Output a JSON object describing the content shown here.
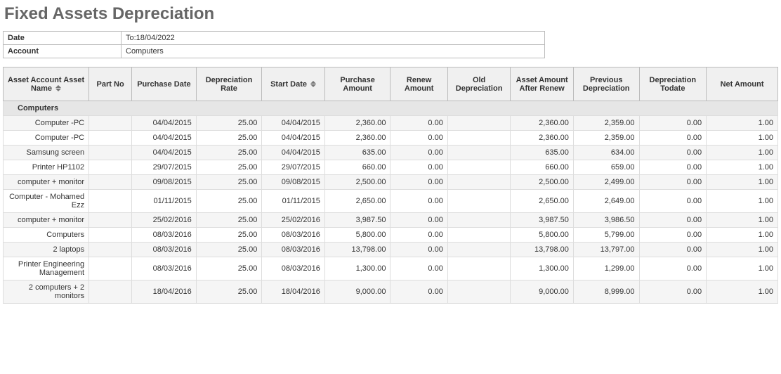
{
  "title": "Fixed Assets Depreciation",
  "meta": {
    "date_label": "Date",
    "date_value": "To:18/04/2022",
    "account_label": "Account",
    "account_value": "Computers"
  },
  "columns": [
    "Asset Account Asset Name",
    "Part No",
    "Purchase Date",
    "Depreciation Rate",
    "Start Date",
    "Purchase Amount",
    "Renew Amount",
    "Old Depreciation",
    "Asset Amount After Renew",
    "Previous Depreciation",
    "Depreciation Todate",
    "Net Amount"
  ],
  "group_label": "Computers",
  "rows": [
    {
      "name": "Computer -PC",
      "part": "",
      "pdate": "04/04/2015",
      "rate": "25.00",
      "sdate": "04/04/2015",
      "pamount": "2,360.00",
      "renew": "0.00",
      "olddep": "",
      "after": "2,360.00",
      "prev": "2,359.00",
      "todate": "0.00",
      "net": "1.00"
    },
    {
      "name": "Computer -PC",
      "part": "",
      "pdate": "04/04/2015",
      "rate": "25.00",
      "sdate": "04/04/2015",
      "pamount": "2,360.00",
      "renew": "0.00",
      "olddep": "",
      "after": "2,360.00",
      "prev": "2,359.00",
      "todate": "0.00",
      "net": "1.00"
    },
    {
      "name": "Samsung screen",
      "part": "",
      "pdate": "04/04/2015",
      "rate": "25.00",
      "sdate": "04/04/2015",
      "pamount": "635.00",
      "renew": "0.00",
      "olddep": "",
      "after": "635.00",
      "prev": "634.00",
      "todate": "0.00",
      "net": "1.00"
    },
    {
      "name": "Printer HP1102",
      "part": "",
      "pdate": "29/07/2015",
      "rate": "25.00",
      "sdate": "29/07/2015",
      "pamount": "660.00",
      "renew": "0.00",
      "olddep": "",
      "after": "660.00",
      "prev": "659.00",
      "todate": "0.00",
      "net": "1.00"
    },
    {
      "name": "computer + monitor",
      "part": "",
      "pdate": "09/08/2015",
      "rate": "25.00",
      "sdate": "09/08/2015",
      "pamount": "2,500.00",
      "renew": "0.00",
      "olddep": "",
      "after": "2,500.00",
      "prev": "2,499.00",
      "todate": "0.00",
      "net": "1.00"
    },
    {
      "name": "Computer - Mohamed Ezz",
      "part": "",
      "pdate": "01/11/2015",
      "rate": "25.00",
      "sdate": "01/11/2015",
      "pamount": "2,650.00",
      "renew": "0.00",
      "olddep": "",
      "after": "2,650.00",
      "prev": "2,649.00",
      "todate": "0.00",
      "net": "1.00"
    },
    {
      "name": "computer + monitor",
      "part": "",
      "pdate": "25/02/2016",
      "rate": "25.00",
      "sdate": "25/02/2016",
      "pamount": "3,987.50",
      "renew": "0.00",
      "olddep": "",
      "after": "3,987.50",
      "prev": "3,986.50",
      "todate": "0.00",
      "net": "1.00"
    },
    {
      "name": "Computers",
      "part": "",
      "pdate": "08/03/2016",
      "rate": "25.00",
      "sdate": "08/03/2016",
      "pamount": "5,800.00",
      "renew": "0.00",
      "olddep": "",
      "after": "5,800.00",
      "prev": "5,799.00",
      "todate": "0.00",
      "net": "1.00"
    },
    {
      "name": "2 laptops",
      "part": "",
      "pdate": "08/03/2016",
      "rate": "25.00",
      "sdate": "08/03/2016",
      "pamount": "13,798.00",
      "renew": "0.00",
      "olddep": "",
      "after": "13,798.00",
      "prev": "13,797.00",
      "todate": "0.00",
      "net": "1.00"
    },
    {
      "name": "Printer Engineering Management",
      "part": "",
      "pdate": "08/03/2016",
      "rate": "25.00",
      "sdate": "08/03/2016",
      "pamount": "1,300.00",
      "renew": "0.00",
      "olddep": "",
      "after": "1,300.00",
      "prev": "1,299.00",
      "todate": "0.00",
      "net": "1.00"
    },
    {
      "name": "2 computers + 2 monitors",
      "part": "",
      "pdate": "18/04/2016",
      "rate": "25.00",
      "sdate": "18/04/2016",
      "pamount": "9,000.00",
      "renew": "0.00",
      "olddep": "",
      "after": "9,000.00",
      "prev": "8,999.00",
      "todate": "0.00",
      "net": "1.00"
    }
  ]
}
